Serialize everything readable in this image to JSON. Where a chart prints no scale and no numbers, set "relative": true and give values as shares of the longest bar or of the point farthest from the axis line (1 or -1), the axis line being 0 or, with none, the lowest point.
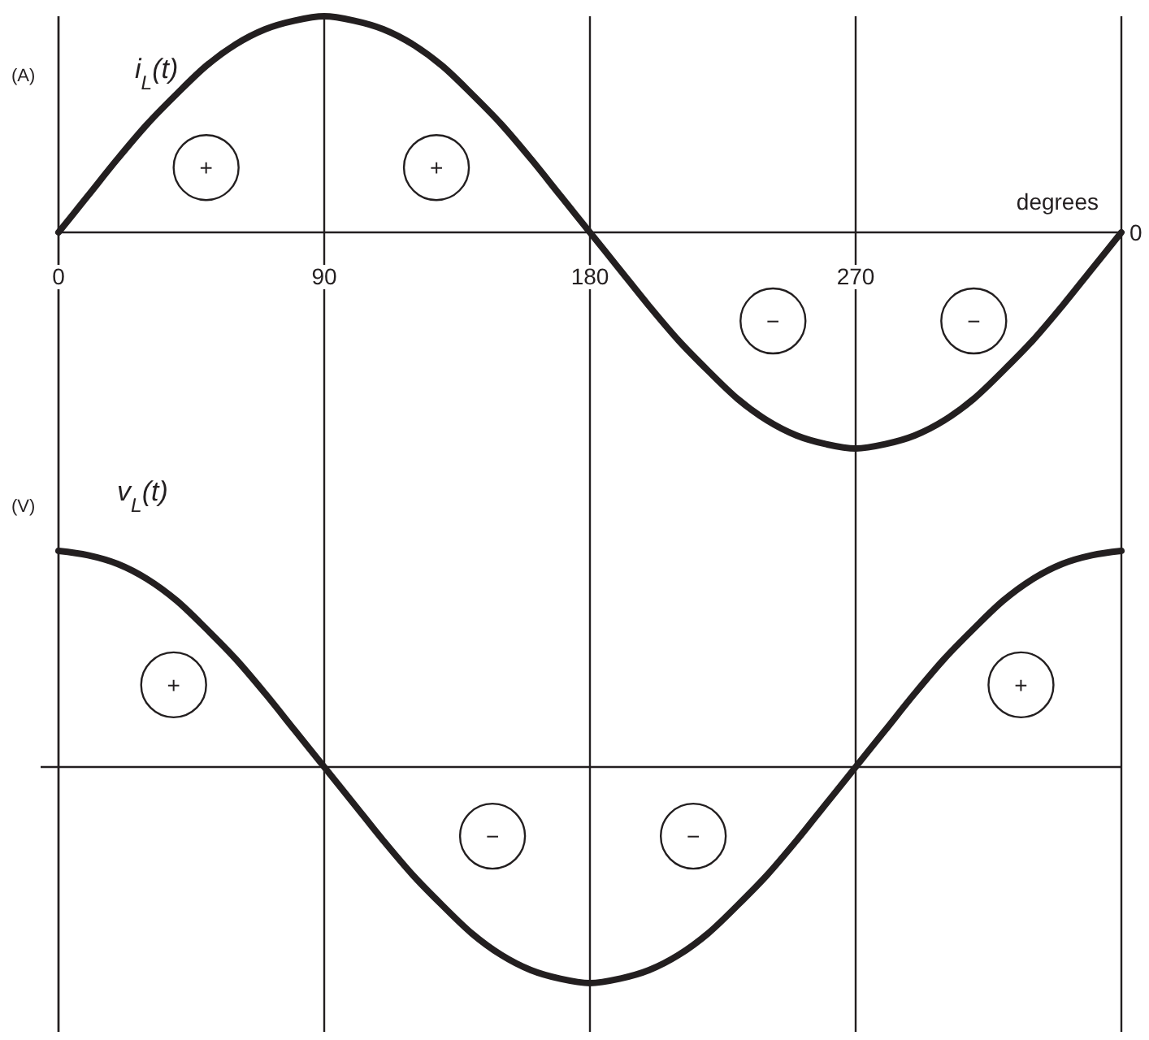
{
  "chart_data": [
    {
      "type": "line",
      "xlabel": "degrees",
      "ylabel": "(A)",
      "relative": true,
      "x": [
        0,
        10,
        20,
        30,
        40,
        50,
        60,
        70,
        80,
        90,
        100,
        110,
        120,
        130,
        140,
        150,
        160,
        170,
        180,
        190,
        200,
        210,
        220,
        230,
        240,
        250,
        260,
        270,
        280,
        290,
        300,
        310,
        320,
        330,
        340,
        350,
        360
      ],
      "xlim": [
        0,
        360
      ],
      "xticks": [
        0,
        90,
        180,
        270,
        {
          "value": 360,
          "label": null
        }
      ],
      "grid": "x",
      "series": [
        {
          "name": "i$_{L}$(t)",
          "color": "#231f20",
          "values": [
            0,
            0.17,
            0.34,
            0.5,
            0.64,
            0.77,
            0.87,
            0.94,
            0.98,
            1,
            0.98,
            0.94,
            0.87,
            0.77,
            0.64,
            0.5,
            0.34,
            0.17,
            0,
            -0.17,
            -0.34,
            -0.5,
            -0.64,
            -0.77,
            -0.87,
            -0.94,
            -0.98,
            -1,
            -0.98,
            -0.94,
            -0.87,
            -0.77,
            -0.64,
            -0.5,
            -0.34,
            -0.17,
            0
          ]
        }
      ],
      "annotations": [
        "0",
        {
          "text": "+",
          "x": 50,
          "y": 0.3
        },
        {
          "text": "+",
          "x": 128,
          "y": 0.3
        },
        {
          "text": "−",
          "x": 242,
          "y": -0.41
        },
        {
          "text": "−",
          "x": 310,
          "y": -0.41
        }
      ]
    },
    {
      "type": "line",
      "ylabel": "(V)",
      "relative": true,
      "x": [
        0,
        10,
        20,
        30,
        40,
        50,
        60,
        70,
        80,
        90,
        100,
        110,
        120,
        130,
        140,
        150,
        160,
        170,
        180,
        190,
        200,
        210,
        220,
        230,
        240,
        250,
        260,
        270,
        280,
        290,
        300,
        310,
        320,
        330,
        340,
        350,
        360
      ],
      "xlim": [
        0,
        360
      ],
      "xticks": [
        0,
        90,
        180,
        270,
        360
      ],
      "grid": "x",
      "tick_labels": false,
      "series": [
        {
          "name": "v$_{L}$(t)",
          "color": "#231f20",
          "values": [
            1,
            0.98,
            0.94,
            0.87,
            0.77,
            0.64,
            0.5,
            0.34,
            0.17,
            0,
            -0.17,
            -0.34,
            -0.5,
            -0.64,
            -0.77,
            -0.87,
            -0.94,
            -0.98,
            -1,
            -0.98,
            -0.94,
            -0.87,
            -0.77,
            -0.64,
            -0.5,
            -0.34,
            -0.17,
            0,
            0.17,
            0.34,
            0.5,
            0.64,
            0.77,
            0.87,
            0.94,
            0.98,
            1
          ]
        }
      ],
      "annotations": [
        {
          "text": "+",
          "x": 39,
          "y": 0.38
        },
        {
          "text": "−",
          "x": 147,
          "y": -0.32
        },
        {
          "text": "−",
          "x": 215,
          "y": -0.32
        },
        {
          "text": "+",
          "x": 326,
          "y": 0.38
        }
      ]
    }
  ]
}
